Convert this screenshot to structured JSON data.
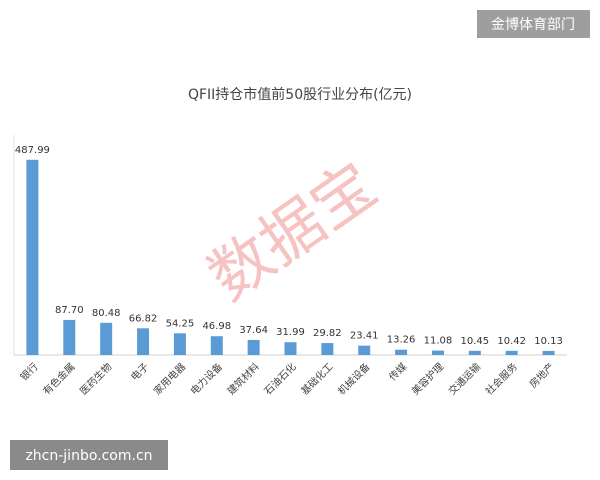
{
  "chart_data": {
    "type": "bar",
    "title": "QFII持仓市值前50股行业分布(亿元)",
    "categories": [
      "银行",
      "有色金属",
      "医药生物",
      "电子",
      "家用电器",
      "电力设备",
      "建筑材料",
      "石油石化",
      "基础化工",
      "机械设备",
      "传媒",
      "美容护理",
      "交通运输",
      "社会服务",
      "房地产"
    ],
    "values": [
      487.99,
      87.7,
      80.48,
      66.82,
      54.25,
      46.98,
      37.64,
      31.99,
      29.82,
      23.41,
      13.26,
      11.08,
      10.45,
      10.42,
      10.13
    ],
    "value_labels": [
      "487.99",
      "87.70",
      "80.48",
      "66.82",
      "54.25",
      "46.98",
      "37.64",
      "31.99",
      "29.82",
      "23.41",
      "13.26",
      "11.08",
      "10.45",
      "10.42",
      "10.13"
    ],
    "color": "#5b9bd5",
    "ylim": [
      0,
      550
    ]
  },
  "watermarks": {
    "brand": "金博体育部门",
    "site": "zhcn-jinbo.com.cn",
    "stamp": "数据宝"
  }
}
